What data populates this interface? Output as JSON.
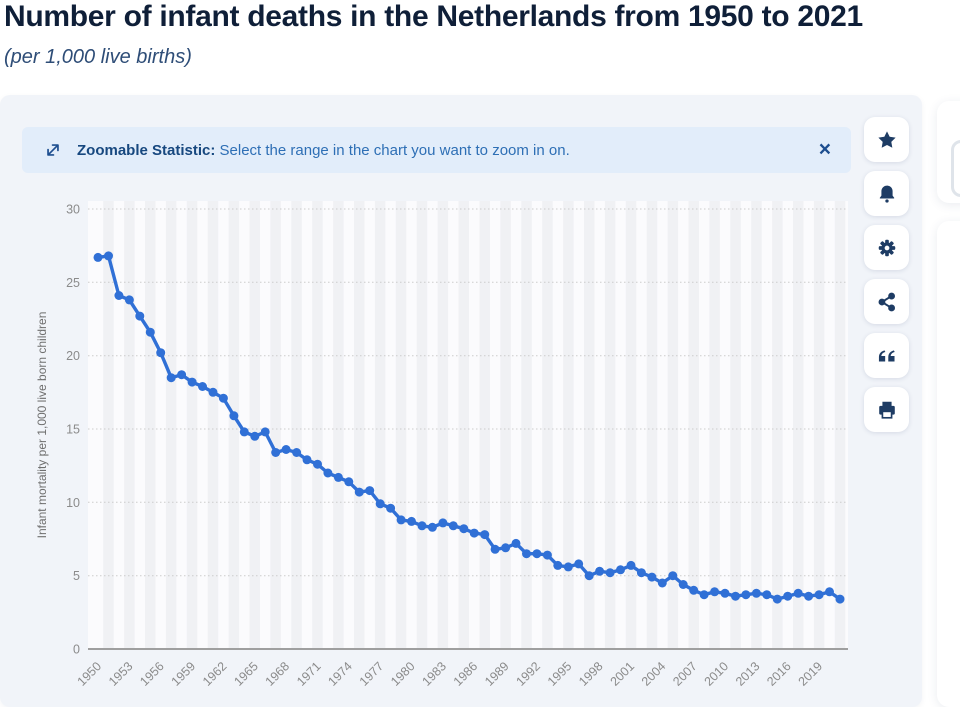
{
  "header": {
    "title": "Number of infant deaths in the Netherlands from 1950 to 2021",
    "subtitle": "(per 1,000 live births)"
  },
  "banner": {
    "label": "Zoomable Statistic:",
    "message": " Select the range in the chart you want to zoom in on.",
    "close_symbol": "×",
    "icon": "zoom-range-icon"
  },
  "toolbar": {
    "buttons": [
      {
        "name": "favorite-button",
        "icon": "star-icon"
      },
      {
        "name": "alert-button",
        "icon": "bell-icon"
      },
      {
        "name": "settings-button",
        "icon": "gear-icon"
      },
      {
        "name": "share-button",
        "icon": "share-icon"
      },
      {
        "name": "cite-button",
        "icon": "quote-icon"
      },
      {
        "name": "print-button",
        "icon": "printer-icon"
      }
    ]
  },
  "colors": {
    "line": "#3070d6",
    "icon_navy": "#1e3c64",
    "banner_bg": "#e2edfa",
    "banner_text": "#2e6fb5",
    "banner_label": "#17487f"
  },
  "chart_data": {
    "type": "line",
    "title": "Number of infant deaths in the Netherlands from 1950 to 2021",
    "subtitle": "(per 1,000 live births)",
    "xlabel": "",
    "ylabel": "Infant mortality per 1,000 live born children",
    "ylim": [
      0,
      30
    ],
    "y_ticks": [
      0,
      5,
      10,
      15,
      20,
      25,
      30
    ],
    "x_tick_labels": [
      "1950",
      "1953",
      "1956",
      "1959",
      "1962",
      "1965",
      "1968",
      "1971",
      "1974",
      "1977",
      "1980",
      "1983",
      "1986",
      "1989",
      "1992",
      "1995",
      "1998",
      "2001",
      "2004",
      "2007",
      "2010",
      "2013",
      "2016",
      "2019"
    ],
    "grid": "dotted-horizontal",
    "legend": "none",
    "marker": "circle",
    "x": [
      1950,
      1951,
      1952,
      1953,
      1954,
      1955,
      1956,
      1957,
      1958,
      1959,
      1960,
      1961,
      1962,
      1963,
      1964,
      1965,
      1966,
      1967,
      1968,
      1969,
      1970,
      1971,
      1972,
      1973,
      1974,
      1975,
      1976,
      1977,
      1978,
      1979,
      1980,
      1981,
      1982,
      1983,
      1984,
      1985,
      1986,
      1987,
      1988,
      1989,
      1990,
      1991,
      1992,
      1993,
      1994,
      1995,
      1996,
      1997,
      1998,
      1999,
      2000,
      2001,
      2002,
      2003,
      2004,
      2005,
      2006,
      2007,
      2008,
      2009,
      2010,
      2011,
      2012,
      2013,
      2014,
      2015,
      2016,
      2017,
      2018,
      2019,
      2020,
      2021
    ],
    "values": [
      26.7,
      26.8,
      24.1,
      23.8,
      22.7,
      21.6,
      20.2,
      18.5,
      18.7,
      18.2,
      17.9,
      17.5,
      17.1,
      15.9,
      14.8,
      14.5,
      14.8,
      13.4,
      13.6,
      13.4,
      12.9,
      12.6,
      12.0,
      11.7,
      11.4,
      10.7,
      10.8,
      9.9,
      9.6,
      8.8,
      8.7,
      8.4,
      8.3,
      8.6,
      8.4,
      8.2,
      7.9,
      7.8,
      6.8,
      6.9,
      7.2,
      6.5,
      6.5,
      6.4,
      5.7,
      5.6,
      5.8,
      5.0,
      5.3,
      5.2,
      5.4,
      5.7,
      5.2,
      4.9,
      4.5,
      5.0,
      4.4,
      4.0,
      3.7,
      3.9,
      3.8,
      3.6,
      3.7,
      3.8,
      3.7,
      3.4,
      3.6,
      3.8,
      3.6,
      3.7,
      3.9,
      3.4
    ]
  }
}
